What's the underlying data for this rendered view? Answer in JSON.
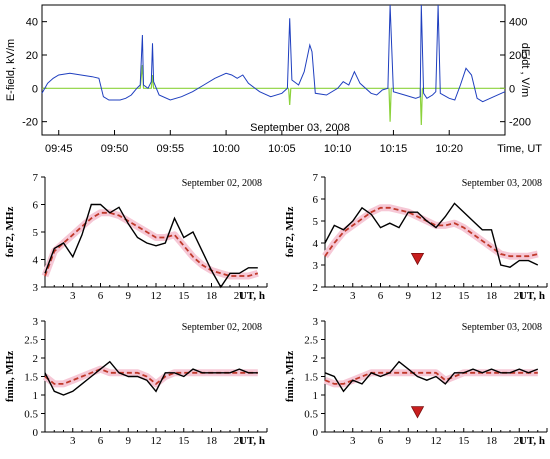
{
  "chart_data": [
    {
      "type": "line",
      "date_label": "September 03, 2008",
      "ylabel_left": "E-field, kV/m",
      "ylabel_right": "dE/dt , V/m",
      "xlabel": "Time, UT",
      "x_ticks": [
        "09:45",
        "09:50",
        "09:55",
        "10:00",
        "10:05",
        "10:10",
        "10:15",
        "10:20"
      ],
      "x_tick_minutes": [
        0,
        5,
        10,
        15,
        20,
        25,
        30,
        35
      ],
      "xlim_minutes": [
        -1.5,
        40
      ],
      "y_left_ticks": [
        "-20",
        "0",
        "20",
        "40"
      ],
      "ylim_left": [
        -28,
        50
      ],
      "y_right_ticks": [
        "-200",
        "0",
        "200",
        "400"
      ],
      "ylim_right": [
        -280,
        500
      ],
      "series": [
        {
          "color": "#1f3fbf",
          "points": [
            [
              -1.5,
              -3
            ],
            [
              -1,
              3
            ],
            [
              -0.5,
              6
            ],
            [
              0,
              8
            ],
            [
              1,
              9
            ],
            [
              2,
              8
            ],
            [
              3,
              7
            ],
            [
              3.6,
              6
            ],
            [
              4,
              -5
            ],
            [
              4.5,
              -7
            ],
            [
              5.5,
              -7
            ],
            [
              6,
              -6
            ],
            [
              6.5,
              -4
            ],
            [
              7,
              0
            ],
            [
              7.3,
              2
            ],
            [
              7.5,
              32
            ],
            [
              7.6,
              2
            ],
            [
              8,
              0
            ],
            [
              8.3,
              4
            ],
            [
              8.4,
              27
            ],
            [
              8.5,
              4
            ],
            [
              9,
              -4
            ],
            [
              10,
              -7
            ],
            [
              11,
              -5
            ],
            [
              12,
              -2
            ],
            [
              13,
              2
            ],
            [
              14,
              6
            ],
            [
              15,
              9
            ],
            [
              15.5,
              8
            ],
            [
              16,
              6
            ],
            [
              16.5,
              8
            ],
            [
              17,
              3
            ],
            [
              18,
              -2
            ],
            [
              19,
              -5
            ],
            [
              20,
              -3
            ],
            [
              20.5,
              0
            ],
            [
              20.7,
              42
            ],
            [
              20.9,
              5
            ],
            [
              21.5,
              2
            ],
            [
              22,
              10
            ],
            [
              22.5,
              26
            ],
            [
              22.7,
              22
            ],
            [
              23,
              -3
            ],
            [
              24,
              -4
            ],
            [
              25,
              0
            ],
            [
              25.5,
              4
            ],
            [
              26,
              2
            ],
            [
              26.5,
              10
            ],
            [
              27,
              3
            ],
            [
              28,
              -3
            ],
            [
              28.5,
              -4
            ],
            [
              29,
              -1
            ],
            [
              29.5,
              0
            ],
            [
              29.7,
              50
            ],
            [
              30,
              -2
            ],
            [
              31,
              -4
            ],
            [
              32,
              -6
            ],
            [
              32.4,
              -5
            ],
            [
              32.5,
              50
            ],
            [
              32.7,
              -3
            ],
            [
              33,
              -6
            ],
            [
              33.5,
              -4
            ],
            [
              33.8,
              -2
            ],
            [
              34,
              50
            ],
            [
              34.2,
              -3
            ],
            [
              35,
              -6
            ],
            [
              35.5,
              -7
            ],
            [
              36,
              2
            ],
            [
              36.5,
              12
            ],
            [
              37,
              8
            ],
            [
              37.5,
              -6
            ],
            [
              38,
              -8
            ],
            [
              39,
              -5
            ],
            [
              40,
              -2
            ]
          ]
        },
        {
          "axis": "right",
          "color": "#8cd23c",
          "points": [
            [
              -1.5,
              0
            ],
            [
              7.3,
              0
            ],
            [
              7.5,
              140
            ],
            [
              7.6,
              0
            ],
            [
              8.3,
              0
            ],
            [
              8.4,
              80
            ],
            [
              8.5,
              0
            ],
            [
              20.6,
              0
            ],
            [
              20.7,
              -100
            ],
            [
              20.8,
              0
            ],
            [
              29.6,
              0
            ],
            [
              29.7,
              -200
            ],
            [
              29.8,
              0
            ],
            [
              32.4,
              0
            ],
            [
              32.5,
              -220
            ],
            [
              32.6,
              0
            ],
            [
              40,
              0
            ]
          ]
        }
      ]
    },
    {
      "type": "line",
      "date_label": "September 02, 2008",
      "ylabel": "foF2, MHz",
      "xlabel": "UT, h",
      "x_tick_labels": [
        "3",
        "6",
        "9",
        "12",
        "15",
        "18",
        "21"
      ],
      "xlim": [
        0,
        24
      ],
      "y_tick_labels": [
        "3",
        "4",
        "5",
        "6",
        "7"
      ],
      "ylim": [
        3,
        7
      ],
      "series": [
        {
          "style": "solid",
          "color": "#000000",
          "x": [
            0,
            1,
            2,
            3,
            4,
            5,
            6,
            7,
            8,
            9,
            10,
            11,
            12,
            13,
            14,
            15,
            16,
            17,
            18,
            19,
            20,
            21,
            22,
            23
          ],
          "values": [
            3.5,
            4.4,
            4.6,
            4.1,
            4.9,
            6.0,
            6.0,
            5.7,
            5.9,
            5.3,
            4.8,
            4.6,
            4.5,
            4.6,
            5.5,
            4.8,
            5.0,
            4.3,
            3.6,
            3.0,
            3.5,
            3.5,
            3.7,
            3.7
          ]
        },
        {
          "style": "dashed",
          "color": "#c0392b",
          "x": [
            0,
            1,
            2,
            3,
            4,
            5,
            6,
            7,
            8,
            9,
            10,
            11,
            12,
            13,
            14,
            15,
            16,
            17,
            18,
            19,
            20,
            21,
            22,
            23
          ],
          "values": [
            3.4,
            4.3,
            4.6,
            4.9,
            5.2,
            5.5,
            5.7,
            5.7,
            5.6,
            5.4,
            5.2,
            5.0,
            4.8,
            4.8,
            4.9,
            4.5,
            4.1,
            3.8,
            3.6,
            3.5,
            3.4,
            3.4,
            3.4,
            3.5
          ]
        }
      ]
    },
    {
      "type": "line",
      "date_label": "September 03, 2008",
      "ylabel": "foF2, MHz",
      "xlabel": "UT, h",
      "x_tick_labels": [
        "3",
        "6",
        "9",
        "12",
        "15",
        "18",
        "21"
      ],
      "xlim": [
        0,
        24
      ],
      "y_tick_labels": [
        "2",
        "3",
        "4",
        "5",
        "6",
        "7"
      ],
      "ylim": [
        2,
        7
      ],
      "marker_time_h": 10,
      "series": [
        {
          "style": "solid",
          "color": "#000000",
          "x": [
            0,
            1,
            2,
            3,
            4,
            5,
            6,
            7,
            8,
            9,
            10,
            11,
            12,
            13,
            14,
            15,
            16,
            17,
            18,
            19,
            20,
            21,
            22,
            23
          ],
          "values": [
            4.0,
            4.8,
            4.6,
            5.0,
            5.6,
            5.3,
            4.7,
            4.9,
            4.7,
            5.4,
            5.4,
            5.0,
            4.7,
            5.2,
            5.8,
            5.4,
            5.0,
            4.6,
            4.6,
            3.0,
            2.9,
            3.2,
            3.2,
            3.0
          ]
        },
        {
          "style": "dashed",
          "color": "#c0392b",
          "x": [
            0,
            1,
            2,
            3,
            4,
            5,
            6,
            7,
            8,
            9,
            10,
            11,
            12,
            13,
            14,
            15,
            16,
            17,
            18,
            19,
            20,
            21,
            22,
            23
          ],
          "values": [
            3.4,
            4.0,
            4.5,
            4.8,
            5.1,
            5.4,
            5.6,
            5.6,
            5.5,
            5.4,
            5.2,
            5.0,
            4.8,
            4.8,
            4.9,
            4.7,
            4.4,
            4.1,
            3.8,
            3.5,
            3.4,
            3.4,
            3.4,
            3.5
          ]
        }
      ]
    },
    {
      "type": "line",
      "date_label": "September 02, 2008",
      "ylabel": "fmin, MHz",
      "xlabel": "UT, h",
      "x_tick_labels": [
        "3",
        "6",
        "9",
        "12",
        "15",
        "18",
        "21"
      ],
      "xlim": [
        0,
        24
      ],
      "y_tick_labels": [
        "0",
        "0.5",
        "1",
        "1.5",
        "2",
        "2.5",
        "3"
      ],
      "ylim": [
        0,
        3
      ],
      "series": [
        {
          "style": "solid",
          "color": "#000000",
          "x": [
            0,
            1,
            2,
            3,
            4,
            5,
            6,
            7,
            8,
            9,
            10,
            11,
            12,
            13,
            14,
            15,
            16,
            17,
            18,
            19,
            20,
            21,
            22,
            23
          ],
          "values": [
            1.6,
            1.1,
            1.0,
            1.1,
            1.3,
            1.5,
            1.7,
            1.9,
            1.6,
            1.5,
            1.5,
            1.4,
            1.1,
            1.6,
            1.6,
            1.5,
            1.7,
            1.6,
            1.6,
            1.6,
            1.6,
            1.7,
            1.6,
            1.6
          ]
        },
        {
          "style": "dashed",
          "color": "#c0392b",
          "x": [
            0,
            1,
            2,
            3,
            4,
            5,
            6,
            7,
            8,
            9,
            10,
            11,
            12,
            13,
            14,
            15,
            16,
            17,
            18,
            19,
            20,
            21,
            22,
            23
          ],
          "values": [
            1.5,
            1.3,
            1.3,
            1.4,
            1.5,
            1.6,
            1.7,
            1.6,
            1.6,
            1.6,
            1.6,
            1.5,
            1.3,
            1.5,
            1.6,
            1.6,
            1.6,
            1.6,
            1.6,
            1.6,
            1.6,
            1.6,
            1.6,
            1.6
          ]
        }
      ]
    },
    {
      "type": "line",
      "date_label": "September 03, 2008",
      "ylabel": "fmin, MHz",
      "xlabel": "UT, h",
      "x_tick_labels": [
        "3",
        "6",
        "9",
        "12",
        "15",
        "18",
        "21"
      ],
      "xlim": [
        0,
        24
      ],
      "y_tick_labels": [
        "0",
        "0.5",
        "1",
        "1.5",
        "2",
        "2.5",
        "3"
      ],
      "ylim": [
        0,
        3
      ],
      "marker_time_h": 10,
      "series": [
        {
          "style": "solid",
          "color": "#000000",
          "x": [
            0,
            1,
            2,
            3,
            4,
            5,
            6,
            7,
            8,
            9,
            10,
            11,
            12,
            13,
            14,
            15,
            16,
            17,
            18,
            19,
            20,
            21,
            22,
            23
          ],
          "values": [
            1.6,
            1.5,
            1.1,
            1.4,
            1.3,
            1.6,
            1.5,
            1.6,
            1.9,
            1.7,
            1.5,
            1.4,
            1.5,
            1.3,
            1.6,
            1.6,
            1.7,
            1.6,
            1.7,
            1.6,
            1.6,
            1.7,
            1.6,
            1.7
          ]
        },
        {
          "style": "dashed",
          "color": "#c0392b",
          "x": [
            0,
            1,
            2,
            3,
            4,
            5,
            6,
            7,
            8,
            9,
            10,
            11,
            12,
            13,
            14,
            15,
            16,
            17,
            18,
            19,
            20,
            21,
            22,
            23
          ],
          "values": [
            1.4,
            1.3,
            1.3,
            1.4,
            1.5,
            1.6,
            1.6,
            1.6,
            1.6,
            1.6,
            1.6,
            1.6,
            1.6,
            1.4,
            1.5,
            1.6,
            1.6,
            1.6,
            1.6,
            1.6,
            1.6,
            1.6,
            1.6,
            1.6
          ]
        }
      ]
    }
  ]
}
